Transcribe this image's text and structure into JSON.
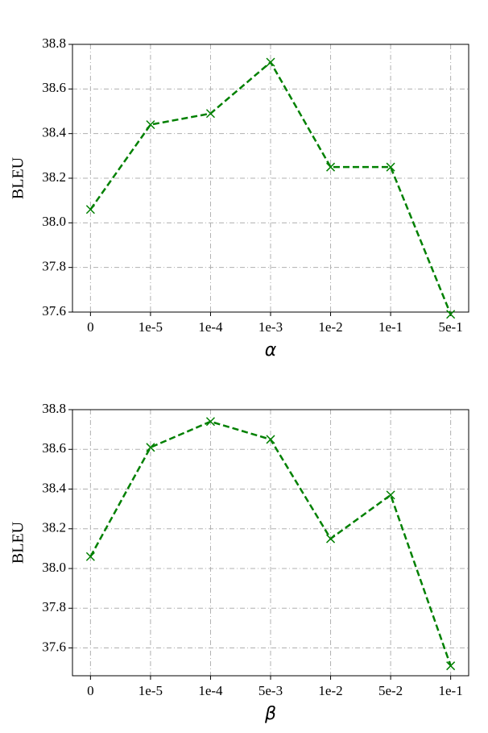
{
  "chart_data": [
    {
      "type": "line",
      "x_label": "α",
      "y_label": "BLEU",
      "categories": [
        "0",
        "1e-5",
        "1e-4",
        "1e-3",
        "1e-2",
        "1e-1",
        "5e-1"
      ],
      "series": [
        {
          "color": "#008000",
          "values": [
            38.06,
            38.44,
            38.49,
            38.72,
            38.25,
            38.25,
            37.59
          ]
        }
      ],
      "ylim": [
        37.6,
        38.8
      ],
      "yticks": [
        37.6,
        37.8,
        {
          "value": 38,
          "label": "38.0"
        },
        38.2,
        38.4,
        38.6,
        38.8
      ],
      "grid": true
    },
    {
      "type": "line",
      "x_label": "β",
      "y_label": "BLEU",
      "categories": [
        "0",
        "1e-5",
        "1e-4",
        "5e-3",
        "1e-2",
        "5e-2",
        "1e-1"
      ],
      "series": [
        {
          "color": "#008000",
          "values": [
            38.06,
            38.61,
            38.74,
            38.65,
            38.15,
            38.37,
            37.51
          ]
        }
      ],
      "ylim": [
        37.46,
        38.8
      ],
      "yticks": [
        37.6,
        37.8,
        {
          "value": 38,
          "label": "38.0"
        },
        38.2,
        38.4,
        38.6,
        38.8
      ],
      "grid": true
    }
  ]
}
